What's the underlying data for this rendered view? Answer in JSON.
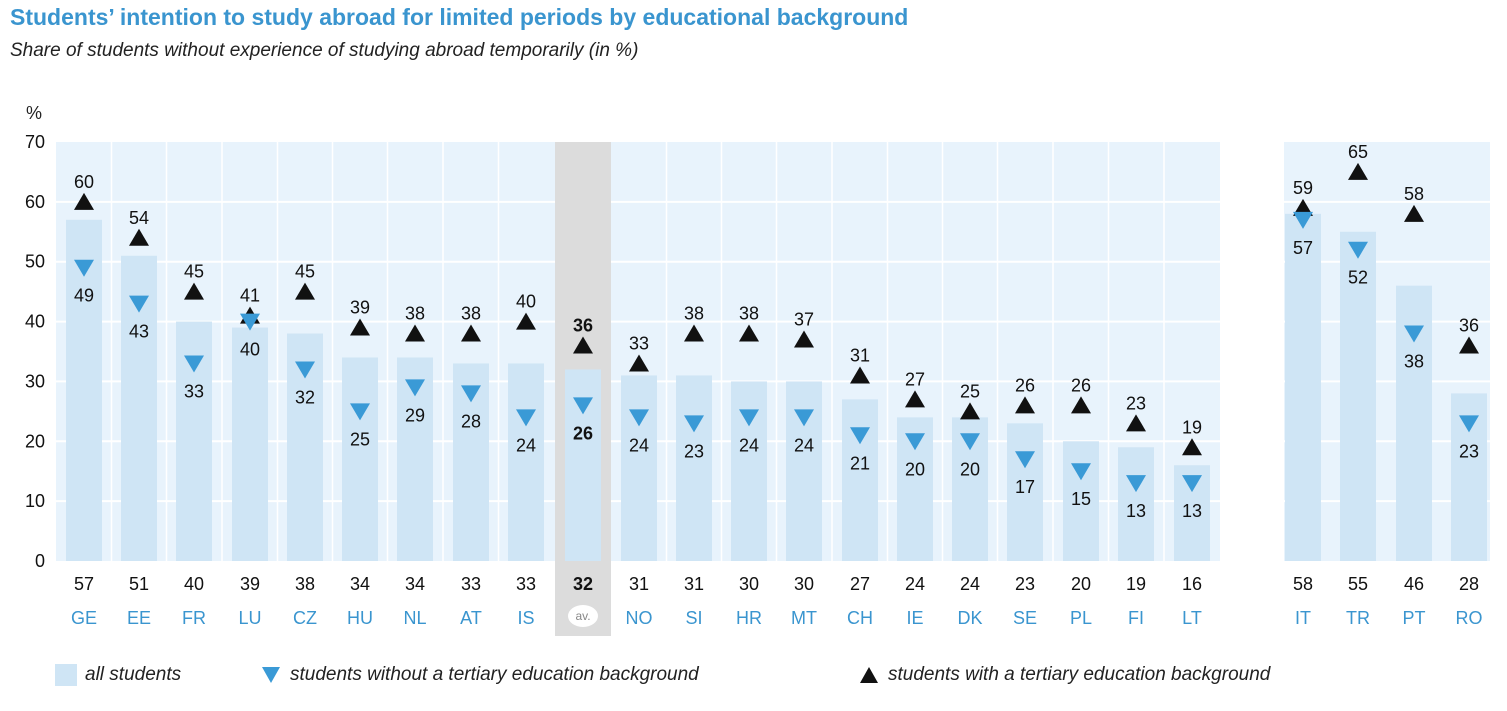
{
  "chart_data": {
    "type": "bar",
    "title": "Students’ intention to study abroad for limited periods by educational background",
    "subtitle": "Share of students without experience of studying abroad temporarily (in %)",
    "ylabel": "%",
    "ylim": [
      0,
      70
    ],
    "yticks": [
      0,
      10,
      20,
      30,
      40,
      50,
      60,
      70
    ],
    "grid": true,
    "categories": [
      "GE",
      "EE",
      "FR",
      "LU",
      "CZ",
      "HU",
      "NL",
      "AT",
      "IS",
      "av.",
      "NO",
      "SI",
      "HR",
      "MT",
      "CH",
      "IE",
      "DK",
      "SE",
      "PL",
      "FI",
      "LT",
      "IT",
      "TR",
      "PT",
      "RO"
    ],
    "average_category": "av.",
    "series": [
      {
        "name": "all students",
        "values": [
          57,
          51,
          40,
          39,
          38,
          34,
          34,
          33,
          33,
          32,
          31,
          31,
          30,
          30,
          27,
          24,
          24,
          23,
          20,
          19,
          16,
          58,
          55,
          46,
          28
        ]
      },
      {
        "name": "students without a tertiary education background",
        "values": [
          49,
          43,
          33,
          40,
          32,
          25,
          29,
          28,
          24,
          26,
          24,
          23,
          24,
          24,
          21,
          20,
          20,
          17,
          15,
          13,
          13,
          57,
          52,
          38,
          23
        ]
      },
      {
        "name": "students with a tertiary education background",
        "values": [
          60,
          54,
          45,
          41,
          45,
          39,
          38,
          38,
          40,
          36,
          33,
          38,
          38,
          37,
          31,
          27,
          25,
          26,
          26,
          23,
          19,
          59,
          65,
          58,
          36
        ]
      }
    ],
    "colors": {
      "bar": "#cfe5f5",
      "plot_bg": "#e8f3fc",
      "avg_band": "#dcdcdc",
      "down_marker": "#3a9ad6",
      "up_marker": "#111111",
      "category_label": "#3a95cf",
      "title": "#3a95cf"
    },
    "legend": {
      "position": "bottom"
    }
  }
}
